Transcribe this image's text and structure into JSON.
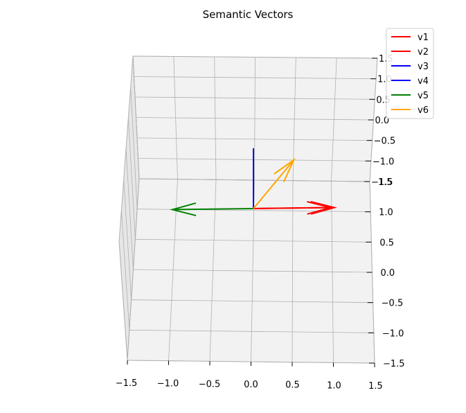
{
  "chart_data": {
    "type": "line",
    "title": "Semantic Vectors",
    "xlim": [
      -1.5,
      1.5
    ],
    "ylim": [
      -1.5,
      1.5
    ],
    "zlim": [
      -1.5,
      1.5
    ],
    "x_ticks": [
      "−1.5",
      "−1.0",
      "−0.5",
      "0.0",
      "0.5",
      "1.0",
      "1.5"
    ],
    "y_ticks": [
      "1.5",
      "1.0",
      "0.5",
      "0.0",
      "−0.5",
      "−1.0",
      "−1.5"
    ],
    "z_ticks": [
      "1.5",
      "1.0",
      "0.5",
      "0.0",
      "−0.5",
      "−1.0",
      "−1.5"
    ],
    "grid": true,
    "legend_position": "top-right",
    "series": [
      {
        "name": "v1",
        "color": "#ff0000",
        "start": [
          0,
          0,
          0
        ],
        "end": [
          1.0,
          0.0,
          0.0
        ]
      },
      {
        "name": "v2",
        "color": "#ff0000",
        "start": [
          0,
          0,
          0
        ],
        "end": [
          0.95,
          0.1,
          0.0
        ]
      },
      {
        "name": "v3",
        "color": "#0000ff",
        "start": [
          0,
          0,
          0
        ],
        "end": [
          0.0,
          0.0,
          1.0
        ]
      },
      {
        "name": "v4",
        "color": "#0000ff",
        "start": [
          0,
          0,
          0
        ],
        "end": [
          0.0,
          0.0,
          1.0
        ]
      },
      {
        "name": "v5",
        "color": "#008000",
        "start": [
          0,
          0,
          0
        ],
        "end": [
          -1.0,
          0.0,
          0.0
        ]
      },
      {
        "name": "v6",
        "color": "#ffa500",
        "start": [
          0,
          0,
          0
        ],
        "end": [
          0.5,
          0.0,
          0.8
        ]
      }
    ]
  }
}
